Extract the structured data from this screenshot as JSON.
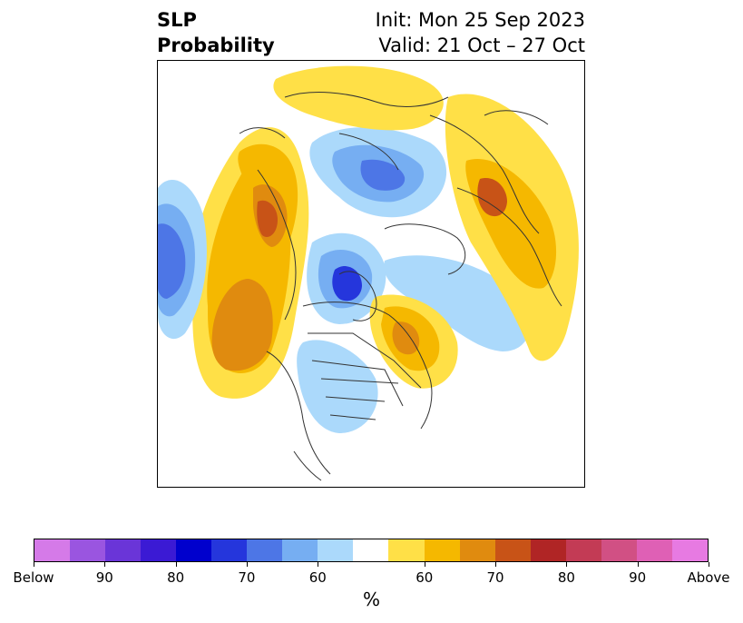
{
  "title": {
    "left_line1": "SLP",
    "left_line2": "Probability",
    "right_line1": "Init: Mon 25 Sep 2023",
    "right_line2": "Valid: 21 Oct – 27 Oct"
  },
  "colorbar": {
    "colors": [
      "#d57ae8",
      "#9a55e0",
      "#6a35d8",
      "#3b1ad4",
      "#0000cd",
      "#2536dc",
      "#4d76e6",
      "#76aef2",
      "#abd9fb",
      "#ffffff",
      "#ffe047",
      "#f5b800",
      "#e08b0f",
      "#c85317",
      "#b02525",
      "#c33b55",
      "#d15084",
      "#df60b5",
      "#e77ae2"
    ],
    "tick_labels": [
      "Below",
      "90",
      "80",
      "70",
      "60",
      "60",
      "70",
      "80",
      "90",
      "Above"
    ],
    "unit_label": "%"
  }
}
